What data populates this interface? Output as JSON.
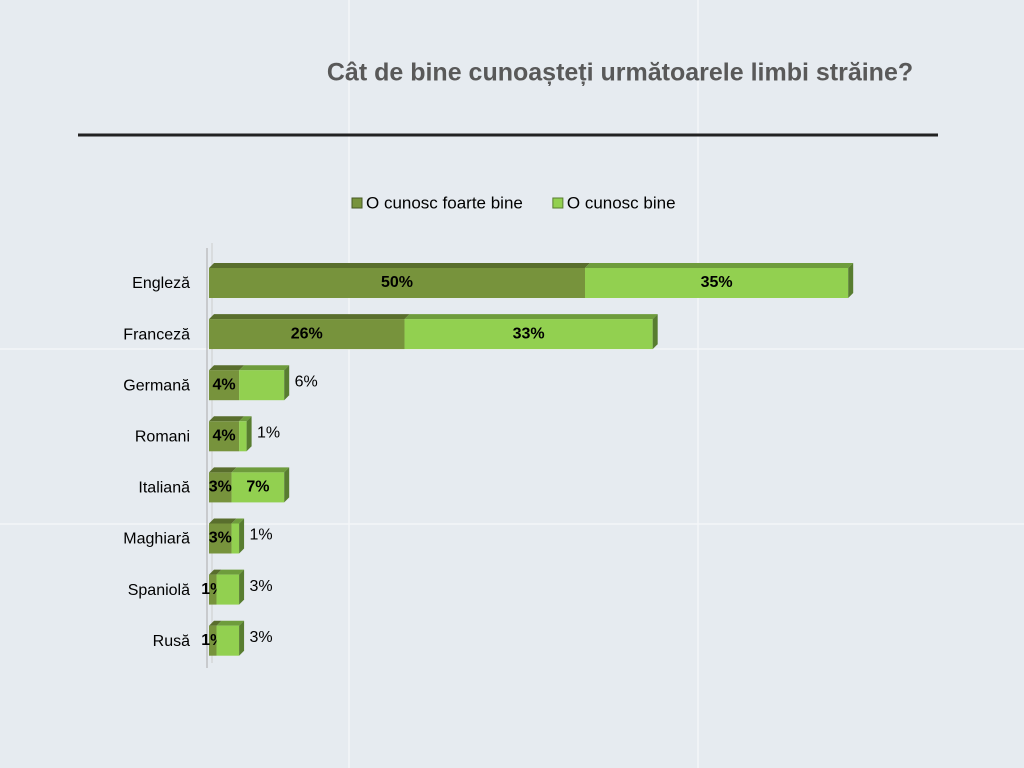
{
  "chart_data": {
    "type": "stacked-bar-horizontal",
    "title": "Cât de bine cunoașteți următoarele limbi străine?",
    "categories": [
      "Engleză",
      "Franceză",
      "Germană",
      "Romani",
      "Italiană",
      "Maghiară",
      "Spaniolă",
      "Rusă"
    ],
    "series": [
      {
        "name": "O cunosc foarte bine",
        "color": "#77933c",
        "values": [
          50,
          26,
          4,
          4,
          3,
          3,
          1,
          1
        ],
        "value_labels": [
          "50%",
          "26%",
          "4%",
          "4%",
          "3%",
          "3%",
          "1%",
          "1%"
        ]
      },
      {
        "name": "O cunosc bine",
        "color": "#92d050",
        "values": [
          35,
          33,
          6,
          1,
          7,
          1,
          3,
          3
        ],
        "value_labels": [
          "35%",
          "33%",
          "6%",
          "1%",
          "7%",
          "1%",
          "3%",
          "3%"
        ]
      }
    ],
    "legend": "top"
  }
}
